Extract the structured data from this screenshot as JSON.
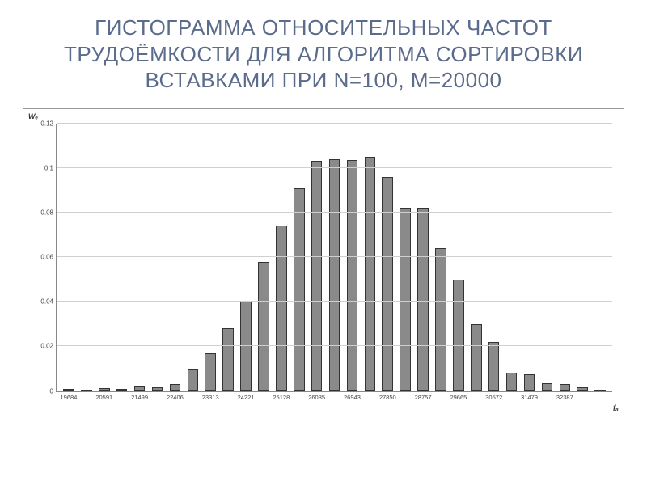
{
  "title": "ГИСТОГРАММА ОТНОСИТЕЛЬНЫХ ЧАСТОТ ТРУДОЁМКОСТИ ДЛЯ АЛГОРИТМА СОРТИРОВКИ ВСТАВКАМИ ПРИ N=100, M=20000",
  "title_fontsize": 26,
  "title_color": "#5a6b8c",
  "chart": {
    "type": "histogram",
    "background_color": "#ffffff",
    "border_color": "#9a9a9a",
    "grid_color": "#d0d0d0",
    "axis_color": "#888888",
    "bar_fill": "#8a8a8a",
    "bar_border": "#333333",
    "bar_width_ratio": 0.62,
    "y_label": "Wₑ",
    "x_label": "fₐ",
    "label_fontsize": 9,
    "tick_fontsize": 8,
    "ylim": [
      0,
      0.12
    ],
    "y_ticks": [
      0,
      0.02,
      0.04,
      0.06,
      0.08,
      0.1,
      0.12
    ],
    "values": [
      0.0008,
      0.0005,
      0.0012,
      0.001,
      0.002,
      0.0018,
      0.003,
      0.0095,
      0.017,
      0.028,
      0.04,
      0.058,
      0.074,
      0.091,
      0.103,
      0.104,
      0.1035,
      0.105,
      0.096,
      0.082,
      0.082,
      0.064,
      0.05,
      0.03,
      0.022,
      0.008,
      0.0075,
      0.0035,
      0.003,
      0.0015,
      0.0007
    ],
    "x_tick_labels": [
      "19684",
      "",
      "20591",
      "",
      "21499",
      "",
      "22406",
      "",
      "23313",
      "",
      "24221",
      "",
      "25128",
      "",
      "26035",
      "",
      "26943",
      "",
      "27850",
      "",
      "28757",
      "",
      "29665",
      "",
      "30572",
      "",
      "31479",
      "",
      "32387",
      "",
      ""
    ]
  }
}
